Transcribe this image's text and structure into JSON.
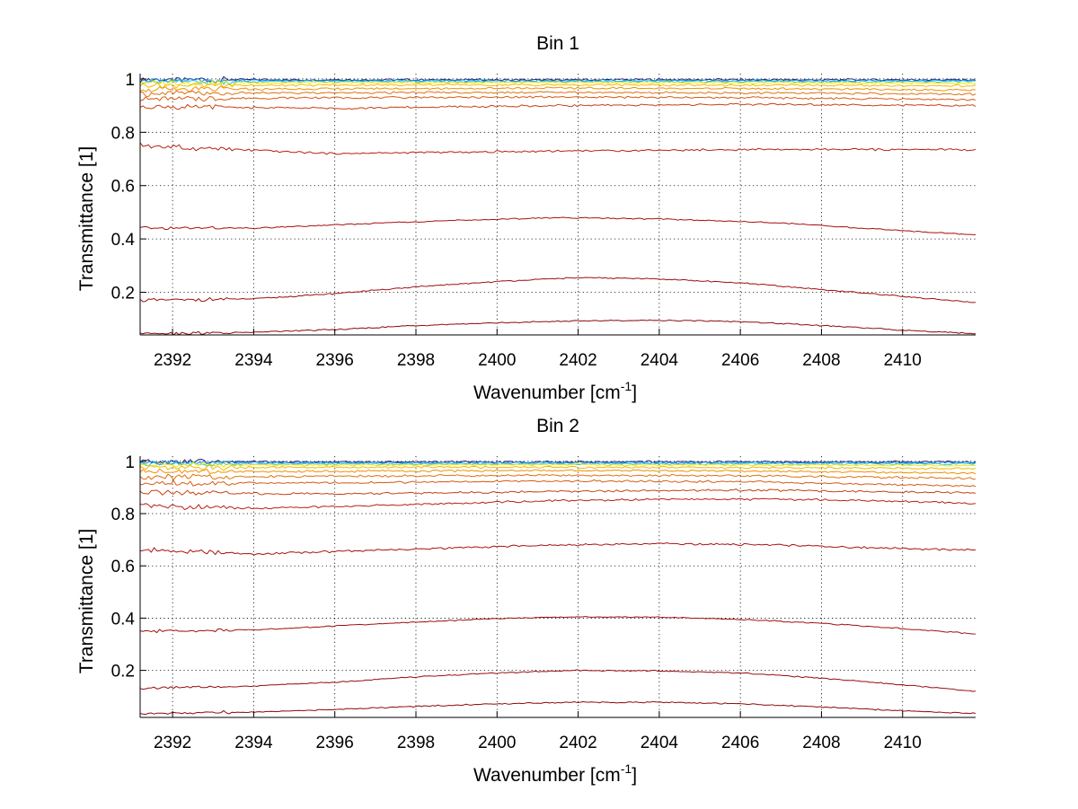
{
  "chart_data": [
    {
      "type": "line",
      "title": "Bin 1",
      "xlabel": "Wavenumber [cm",
      "xlabel_sup": "-1",
      "xlabel_end": "]",
      "ylabel": "Transmittance [1]",
      "xlim": [
        2391.2,
        2411.8
      ],
      "ylim": [
        0.04,
        1.02
      ],
      "xticks": [
        2392,
        2394,
        2396,
        2398,
        2400,
        2402,
        2404,
        2406,
        2408,
        2410
      ],
      "yticks": [
        0.2,
        0.4,
        0.6,
        0.8,
        1
      ],
      "grid": true,
      "series": [
        {
          "color": "#1a237e",
          "x": [
            2391.2,
            2396,
            2401.5,
            2406,
            2411.8
          ],
          "y": [
            0.997,
            0.997,
            0.997,
            0.997,
            0.997
          ]
        },
        {
          "color": "#1e88e5",
          "x": [
            2391.2,
            2396,
            2401.5,
            2406,
            2411.8
          ],
          "y": [
            0.994,
            0.994,
            0.994,
            0.994,
            0.994
          ]
        },
        {
          "color": "#26c6da",
          "x": [
            2391.2,
            2396,
            2401.5,
            2406,
            2411.8
          ],
          "y": [
            0.99,
            0.99,
            0.99,
            0.99,
            0.99
          ]
        },
        {
          "color": "#f2e600",
          "x": [
            2391.2,
            2396,
            2401.5,
            2406,
            2411.8
          ],
          "y": [
            0.985,
            0.986,
            0.987,
            0.986,
            0.984
          ]
        },
        {
          "color": "#f5b800",
          "x": [
            2391.2,
            2396,
            2401.5,
            2406,
            2411.8
          ],
          "y": [
            0.975,
            0.977,
            0.978,
            0.977,
            0.974
          ]
        },
        {
          "color": "#f09000",
          "x": [
            2391.2,
            2396,
            2401.5,
            2406,
            2411.8
          ],
          "y": [
            0.96,
            0.963,
            0.966,
            0.964,
            0.958
          ]
        },
        {
          "color": "#e07010",
          "x": [
            2391.2,
            2396,
            2401.5,
            2406,
            2411.8
          ],
          "y": [
            0.945,
            0.948,
            0.95,
            0.948,
            0.943
          ]
        },
        {
          "color": "#d85a10",
          "x": [
            2391.2,
            2396,
            2401.5,
            2406,
            2411.8
          ],
          "y": [
            0.925,
            0.93,
            0.932,
            0.93,
            0.922
          ]
        },
        {
          "color": "#c84010",
          "x": [
            2391.2,
            2396,
            2401.5,
            2406,
            2411.8
          ],
          "y": [
            0.895,
            0.89,
            0.9,
            0.905,
            0.9
          ]
        },
        {
          "color": "#b82010",
          "x": [
            2391.2,
            2396,
            2401.5,
            2406,
            2411.8
          ],
          "y": [
            0.75,
            0.72,
            0.73,
            0.735,
            0.735
          ]
        },
        {
          "color": "#a81010",
          "x": [
            2391.2,
            2394,
            2398,
            2401.5,
            2404,
            2407,
            2409,
            2411.8
          ],
          "y": [
            0.44,
            0.44,
            0.465,
            0.48,
            0.475,
            0.46,
            0.44,
            0.415
          ]
        },
        {
          "color": "#a00e0e",
          "x": [
            2391.2,
            2394,
            2396,
            2398,
            2400,
            2402,
            2404,
            2406,
            2408,
            2410,
            2411.8
          ],
          "y": [
            0.17,
            0.175,
            0.195,
            0.22,
            0.24,
            0.255,
            0.25,
            0.235,
            0.21,
            0.185,
            0.16
          ]
        },
        {
          "color": "#8c0b0b",
          "x": [
            2391.2,
            2394,
            2396,
            2398,
            2400,
            2402,
            2404,
            2406,
            2408,
            2410,
            2411.8
          ],
          "y": [
            0.045,
            0.05,
            0.06,
            0.075,
            0.085,
            0.093,
            0.095,
            0.09,
            0.075,
            0.058,
            0.045
          ]
        }
      ]
    },
    {
      "type": "line",
      "title": "Bin 2",
      "xlabel": "Wavenumber [cm",
      "xlabel_sup": "-1",
      "xlabel_end": "]",
      "ylabel": "Transmittance [1]",
      "xlim": [
        2391.2,
        2411.8
      ],
      "ylim": [
        0.02,
        1.02
      ],
      "xticks": [
        2392,
        2394,
        2396,
        2398,
        2400,
        2402,
        2404,
        2406,
        2408,
        2410
      ],
      "yticks": [
        0.2,
        0.4,
        0.6,
        0.8,
        1
      ],
      "grid": true,
      "series": [
        {
          "color": "#1a237e",
          "x": [
            2391.2,
            2396,
            2401.5,
            2406,
            2411.8
          ],
          "y": [
            0.998,
            0.998,
            0.998,
            0.998,
            0.998
          ]
        },
        {
          "color": "#1e88e5",
          "x": [
            2391.2,
            2396,
            2401.5,
            2406,
            2411.8
          ],
          "y": [
            0.995,
            0.995,
            0.995,
            0.995,
            0.995
          ]
        },
        {
          "color": "#26c6da",
          "x": [
            2391.2,
            2396,
            2401.5,
            2406,
            2411.8
          ],
          "y": [
            0.99,
            0.99,
            0.99,
            0.99,
            0.99
          ]
        },
        {
          "color": "#f2e600",
          "x": [
            2391.2,
            2396,
            2401.5,
            2406,
            2411.8
          ],
          "y": [
            0.985,
            0.986,
            0.987,
            0.986,
            0.984
          ]
        },
        {
          "color": "#f5b800",
          "x": [
            2391.2,
            2396,
            2401.5,
            2406,
            2411.8
          ],
          "y": [
            0.975,
            0.977,
            0.978,
            0.977,
            0.972
          ]
        },
        {
          "color": "#f09000",
          "x": [
            2391.2,
            2396,
            2401.5,
            2406,
            2411.8
          ],
          "y": [
            0.96,
            0.962,
            0.965,
            0.963,
            0.955
          ]
        },
        {
          "color": "#e07010",
          "x": [
            2391.2,
            2396,
            2401.5,
            2406,
            2411.8
          ],
          "y": [
            0.94,
            0.943,
            0.947,
            0.945,
            0.935
          ]
        },
        {
          "color": "#d85a10",
          "x": [
            2391.2,
            2396,
            2401.5,
            2406,
            2411.8
          ],
          "y": [
            0.915,
            0.918,
            0.925,
            0.922,
            0.905
          ]
        },
        {
          "color": "#c84010",
          "x": [
            2391.2,
            2396,
            2401.5,
            2406,
            2411.8
          ],
          "y": [
            0.88,
            0.875,
            0.885,
            0.89,
            0.88
          ]
        },
        {
          "color": "#b82010",
          "x": [
            2391.2,
            2394,
            2398,
            2401.5,
            2404,
            2407,
            2409,
            2411.8
          ],
          "y": [
            0.83,
            0.82,
            0.835,
            0.85,
            0.855,
            0.855,
            0.85,
            0.84
          ]
        },
        {
          "color": "#a81010",
          "x": [
            2391.2,
            2394,
            2398,
            2401.5,
            2404,
            2407,
            2409,
            2411.8
          ],
          "y": [
            0.66,
            0.645,
            0.665,
            0.68,
            0.685,
            0.68,
            0.67,
            0.66
          ]
        },
        {
          "color": "#a00e0e",
          "x": [
            2391.2,
            2394,
            2396,
            2398,
            2400,
            2402,
            2404,
            2406,
            2408,
            2410,
            2411.8
          ],
          "y": [
            0.35,
            0.355,
            0.37,
            0.385,
            0.398,
            0.405,
            0.404,
            0.395,
            0.38,
            0.36,
            0.34
          ]
        },
        {
          "color": "#960c0c",
          "x": [
            2391.2,
            2394,
            2396,
            2398,
            2400,
            2402,
            2404,
            2406,
            2408,
            2410,
            2411.8
          ],
          "y": [
            0.13,
            0.14,
            0.155,
            0.175,
            0.19,
            0.2,
            0.198,
            0.19,
            0.17,
            0.145,
            0.12
          ]
        },
        {
          "color": "#8c0b0b",
          "x": [
            2391.2,
            2394,
            2396,
            2398,
            2400,
            2402,
            2404,
            2406,
            2408,
            2410,
            2411.8
          ],
          "y": [
            0.035,
            0.04,
            0.05,
            0.062,
            0.072,
            0.078,
            0.078,
            0.072,
            0.06,
            0.045,
            0.035
          ]
        }
      ]
    }
  ]
}
